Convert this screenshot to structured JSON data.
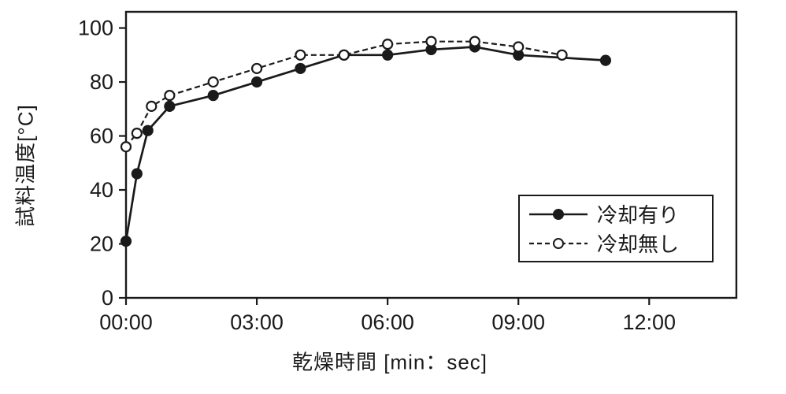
{
  "chart_data": {
    "type": "line",
    "title": "",
    "xlabel": "乾燥時間 [min：sec]",
    "ylabel": "試料温度[°C]",
    "xlim": [
      0,
      840
    ],
    "ylim": [
      0,
      106
    ],
    "x_tick_values": [
      0,
      180,
      360,
      540,
      720
    ],
    "x_tick_labels": [
      "00:00",
      "03:00",
      "06:00",
      "09:00",
      "12:00"
    ],
    "y_tick_values": [
      0,
      20,
      40,
      60,
      80,
      100
    ],
    "y_tick_labels": [
      "0",
      "20",
      "40",
      "60",
      "80",
      "100"
    ],
    "grid": "off",
    "legend_position": "inside-right",
    "series": [
      {
        "name": "冷却有り",
        "marker": "filled-circle",
        "line": "solid",
        "points": [
          [
            0,
            21
          ],
          [
            15,
            46
          ],
          [
            30,
            62
          ],
          [
            60,
            71
          ],
          [
            120,
            75
          ],
          [
            180,
            80
          ],
          [
            240,
            85
          ],
          [
            300,
            90
          ],
          [
            360,
            90
          ],
          [
            420,
            92
          ],
          [
            480,
            93
          ],
          [
            540,
            90
          ],
          [
            660,
            88
          ]
        ]
      },
      {
        "name": "冷却無し",
        "marker": "open-circle",
        "line": "dashed",
        "points": [
          [
            0,
            56
          ],
          [
            15,
            61
          ],
          [
            35,
            71
          ],
          [
            60,
            75
          ],
          [
            120,
            80
          ],
          [
            180,
            85
          ],
          [
            240,
            90
          ],
          [
            300,
            90
          ],
          [
            360,
            94
          ],
          [
            420,
            95
          ],
          [
            480,
            95
          ],
          [
            540,
            93
          ],
          [
            600,
            90
          ]
        ]
      }
    ],
    "colors": {
      "line": "#1a1a1a",
      "background": "#ffffff"
    }
  }
}
